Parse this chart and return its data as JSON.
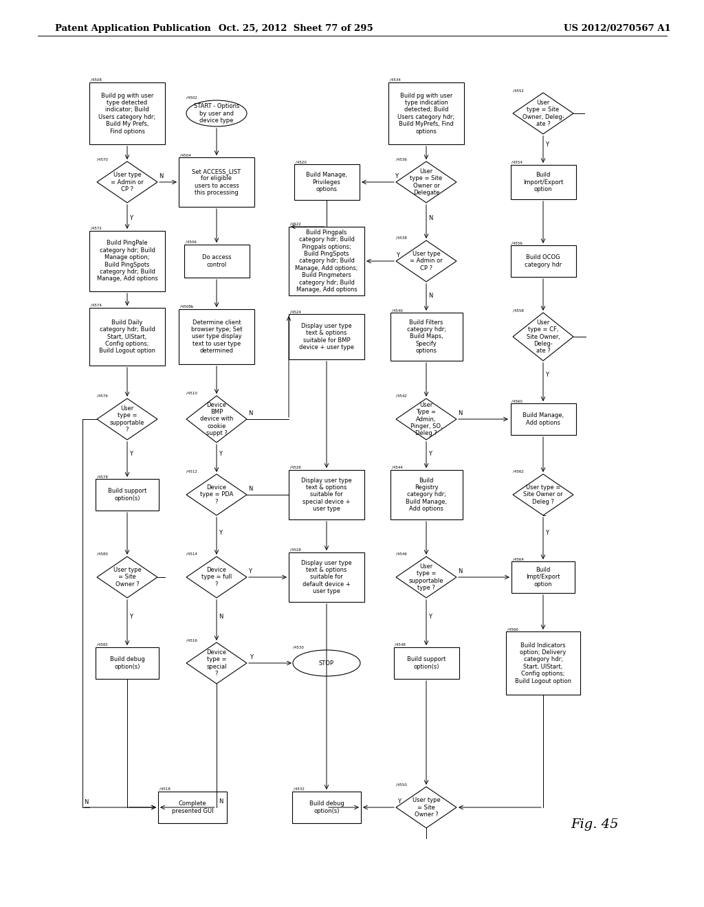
{
  "title_left": "Patent Application Publication",
  "title_mid": "Oct. 25, 2012  Sheet 77 of 295",
  "title_right": "US 2012/0270567 A1",
  "fig_label": "Fig. 45",
  "background": "#ffffff"
}
